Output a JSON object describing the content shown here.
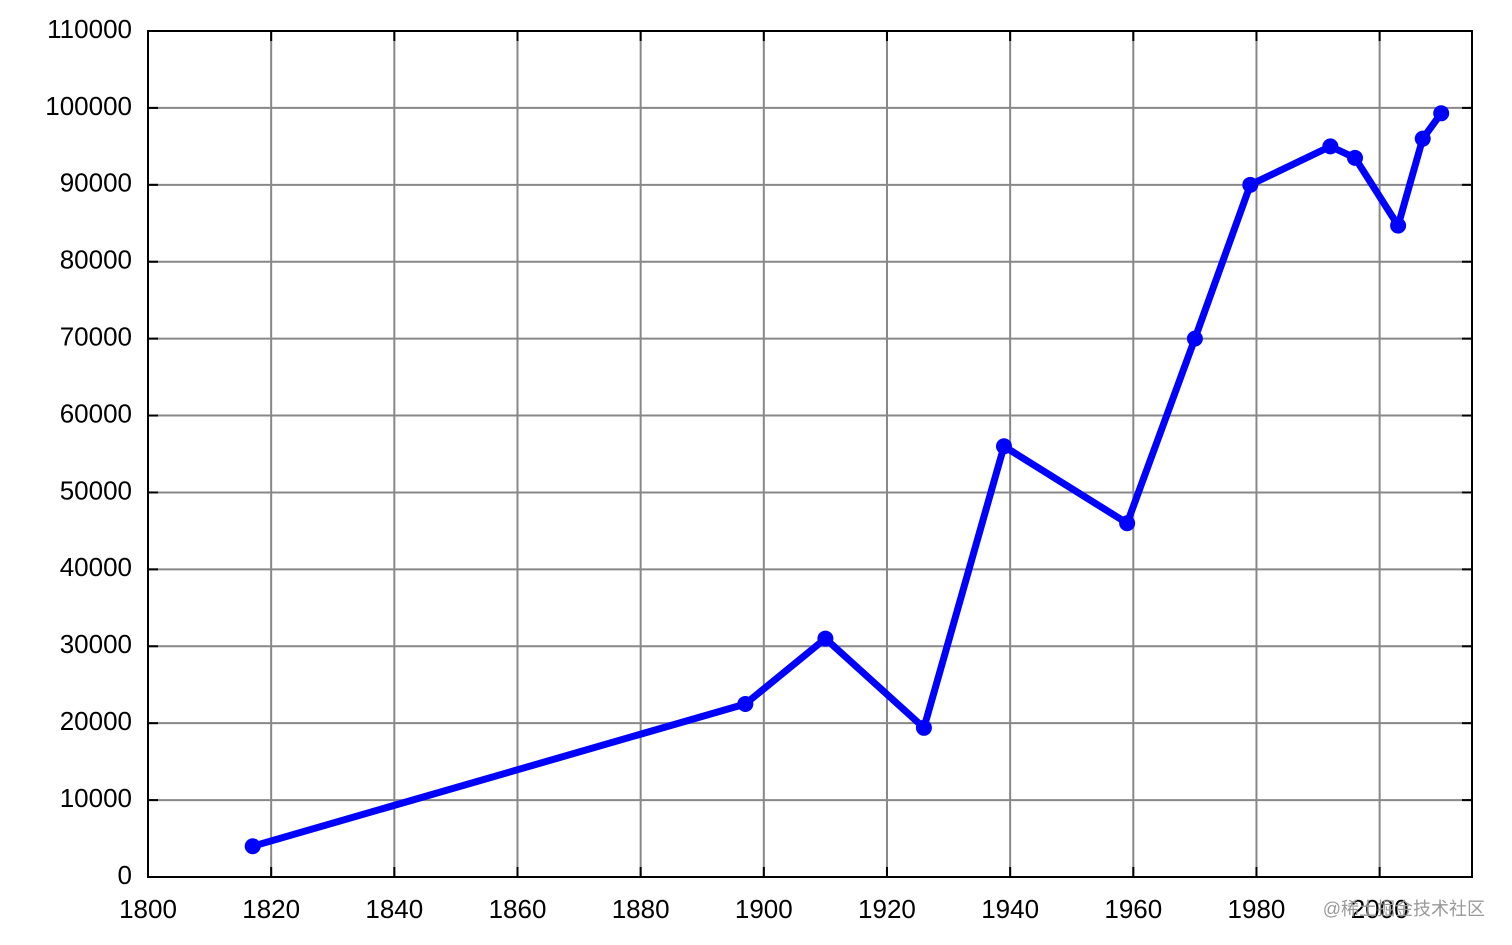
{
  "chart_data": {
    "type": "line",
    "x": [
      1817,
      1897,
      1910,
      1926,
      1939,
      1959,
      1970,
      1979,
      1992,
      1996,
      2003,
      2007,
      2010
    ],
    "series": [
      {
        "color": "#0000ff",
        "values": [
          4000,
          22500,
          31000,
          19400,
          56000,
          46000,
          70000,
          90000,
          95000,
          93500,
          84700,
          96000,
          99300
        ]
      }
    ],
    "xlim": [
      1800,
      2015
    ],
    "xticks": [
      1800,
      1820,
      1840,
      1860,
      1880,
      1900,
      1920,
      1940,
      1960,
      1980,
      2000
    ],
    "ylim": [
      0,
      110000
    ],
    "yticks": [
      0,
      10000,
      20000,
      30000,
      40000,
      50000,
      60000,
      70000,
      80000,
      90000,
      100000,
      110000
    ],
    "grid": true,
    "watermark": "@稀土掘金技术社区"
  }
}
